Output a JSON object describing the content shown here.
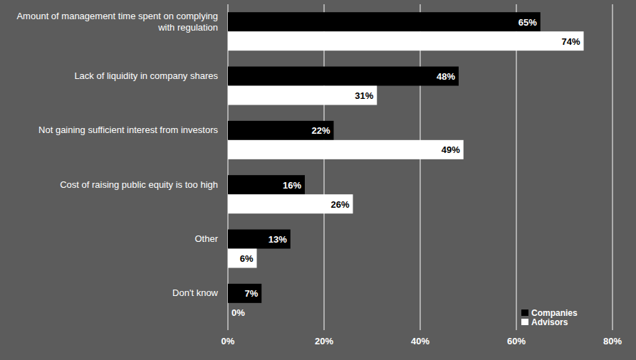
{
  "chart_data": {
    "type": "bar",
    "orientation": "horizontal",
    "categories": [
      "Amount of management time spent on complying with regulation",
      "Lack of liquidity in company shares",
      "Not gaining sufficient interest from investors",
      "Cost of raising public equity is too high",
      "Other",
      "Don't know"
    ],
    "series": [
      {
        "name": "Companies",
        "color": "#000000",
        "values": [
          65,
          48,
          22,
          16,
          13,
          7
        ],
        "value_labels": [
          "65%",
          "48%",
          "22%",
          "16%",
          "13%",
          "7%"
        ]
      },
      {
        "name": "Advisors",
        "color": "#ffffff",
        "values": [
          74,
          31,
          49,
          26,
          6,
          0
        ],
        "value_labels": [
          "74%",
          "31%",
          "49%",
          "26%",
          "6%",
          "0%"
        ]
      }
    ],
    "xlim": [
      0,
      80
    ],
    "xticks": [
      {
        "value": 0,
        "label": "0%"
      },
      {
        "value": 20,
        "label": "20%"
      },
      {
        "value": 40,
        "label": "40%"
      },
      {
        "value": 60,
        "label": "60%"
      },
      {
        "value": 80,
        "label": "80%"
      }
    ],
    "grid": true,
    "data_labels": true,
    "legend": "bottom-right"
  }
}
